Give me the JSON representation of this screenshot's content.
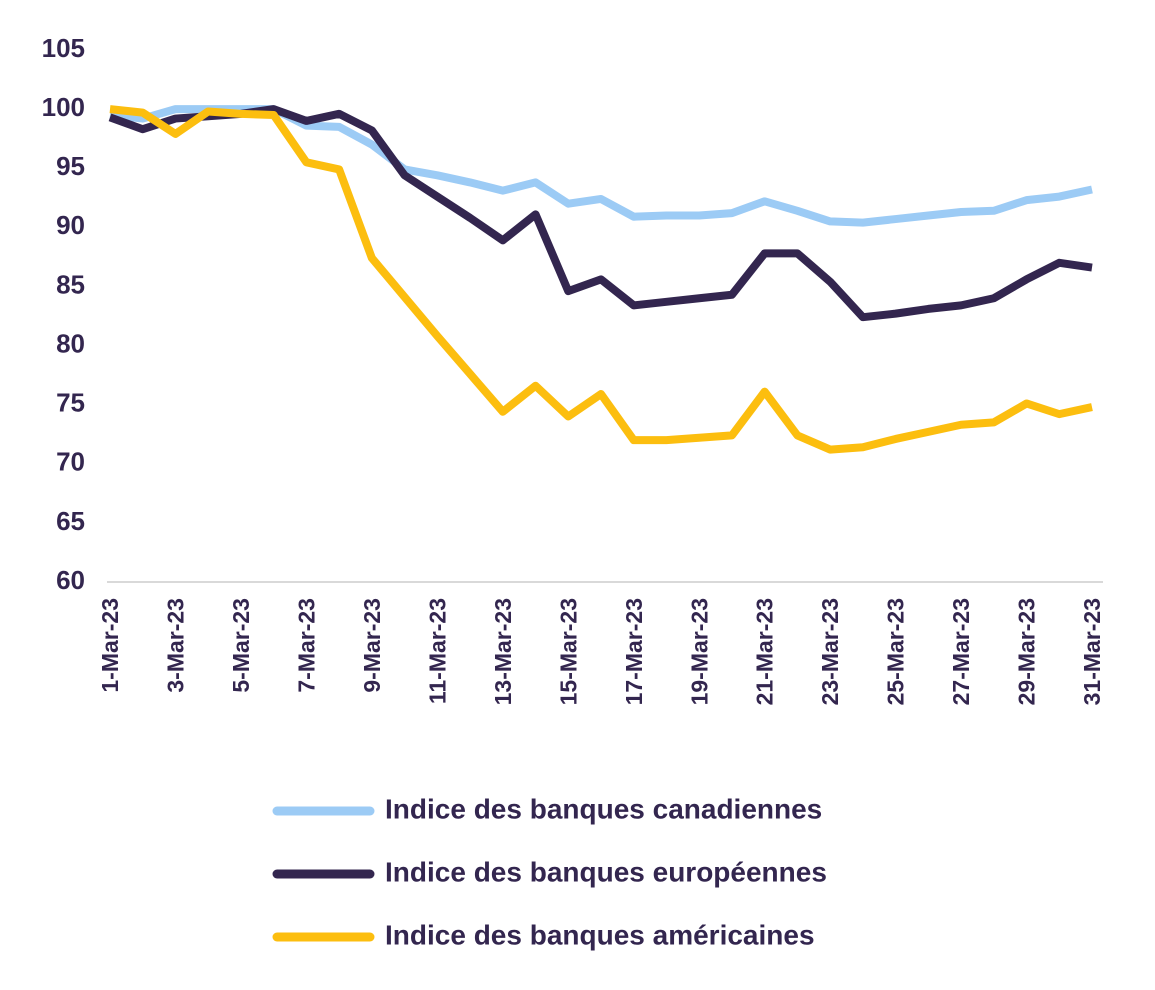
{
  "chart_data": {
    "type": "line",
    "categories": [
      "1-Mar-23",
      null,
      "3-Mar-23",
      null,
      "5-Mar-23",
      null,
      "7-Mar-23",
      null,
      "9-Mar-23",
      null,
      "11-Mar-23",
      null,
      "13-Mar-23",
      null,
      "15-Mar-23",
      null,
      "17-Mar-23",
      null,
      "19-Mar-23",
      null,
      "21-Mar-23",
      null,
      "23-Mar-23",
      null,
      "25-Mar-23",
      null,
      "27-Mar-23",
      null,
      "29-Mar-23",
      null,
      "31-Mar-23"
    ],
    "series": [
      {
        "name": "Indice des banques canadiennes",
        "color": "#9ccbf5",
        "values": [
          99.5,
          99.2,
          100,
          100,
          100,
          100,
          98.6,
          98.5,
          97,
          94.9,
          94.4,
          93.8,
          93.1,
          93.8,
          92,
          92.4,
          90.9,
          91,
          91,
          91.2,
          92.2,
          91.4,
          90.5,
          90.4,
          90.7,
          91,
          91.3,
          91.4,
          92.3,
          92.6,
          93.2
        ]
      },
      {
        "name": "Indice des banques européennes",
        "color": "#33264f",
        "values": [
          99.3,
          98.3,
          99.2,
          99.4,
          99.6,
          100,
          99,
          99.6,
          98.2,
          94.4,
          92.6,
          90.8,
          88.9,
          91.1,
          84.6,
          85.6,
          83.4,
          83.7,
          84,
          84.3,
          87.8,
          87.8,
          85.4,
          82.4,
          82.7,
          83.1,
          83.4,
          84,
          85.6,
          87,
          86.6
        ]
      },
      {
        "name": "Indice des banques américaines",
        "color": "#fcbe0f",
        "values": [
          100,
          99.7,
          97.9,
          99.8,
          99.6,
          99.5,
          95.5,
          94.9,
          87.4,
          84.1,
          80.8,
          77.6,
          74.4,
          76.6,
          74,
          75.9,
          72,
          72,
          72.2,
          72.4,
          76.1,
          72.4,
          71.2,
          71.4,
          72.1,
          72.7,
          73.3,
          73.5,
          75.1,
          74.2,
          74.8
        ]
      }
    ],
    "ylim": [
      60,
      105
    ],
    "yticks": [
      60,
      65,
      70,
      75,
      80,
      85,
      90,
      95,
      100,
      105
    ],
    "grid": false
  }
}
